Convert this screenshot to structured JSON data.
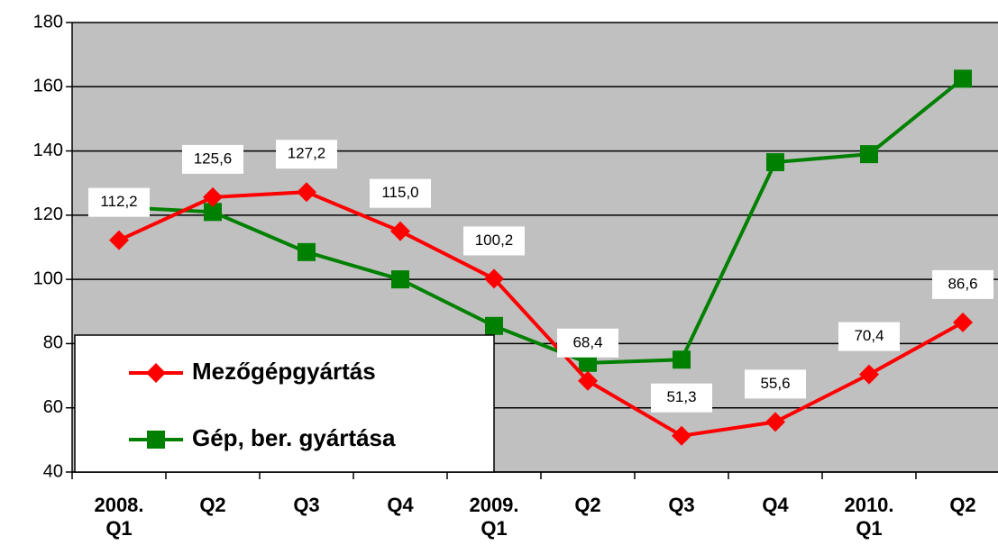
{
  "chart_data": {
    "type": "line",
    "categories": [
      "2008.\nQ1",
      "Q2",
      "Q3",
      "Q4",
      "2009.\nQ1",
      "Q2",
      "Q3",
      "Q4",
      "2010.\nQ1",
      "Q2"
    ],
    "series": [
      {
        "name": "Mezőgépgyártás",
        "color": "#ff0000",
        "marker": "diamond",
        "values": [
          112.2,
          125.6,
          127.2,
          115.0,
          100.2,
          68.4,
          51.3,
          55.6,
          70.4,
          86.6
        ],
        "value_labels": [
          "112,2",
          "125,6",
          "127,2",
          "115,0",
          "100,2",
          "68,4",
          "51,3",
          "55,6",
          "70,4",
          "86,6"
        ]
      },
      {
        "name": "Gép, ber. gyártása",
        "color": "#008000",
        "marker": "square",
        "values": [
          122.5,
          121,
          108.5,
          100,
          85.5,
          74,
          75,
          136.5,
          139,
          162.5
        ]
      }
    ],
    "ylim": [
      40,
      180
    ],
    "yticks": [
      40,
      60,
      80,
      100,
      120,
      140,
      160,
      180
    ],
    "grid": true,
    "legend": "lower left",
    "background": "#c0c0c0"
  }
}
